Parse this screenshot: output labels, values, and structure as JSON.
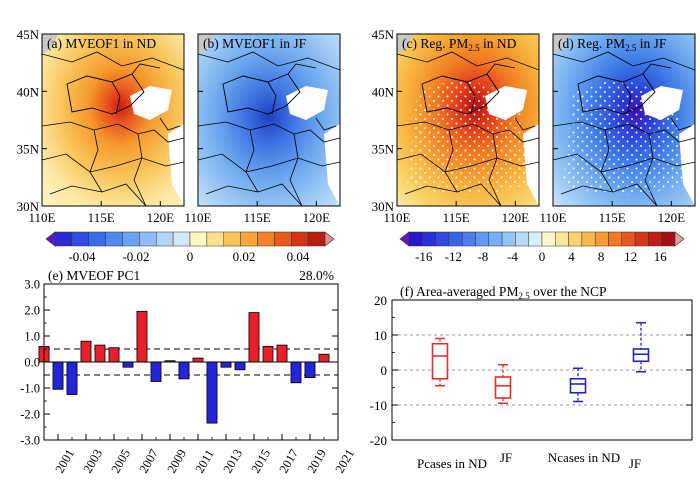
{
  "chart_data": [
    {
      "type": "heatmap",
      "panel": "a",
      "title": "(a) MVEOF1 in ND",
      "xticks": [
        "110E",
        "115E",
        "120E"
      ],
      "yticks": [
        "30N",
        "35N",
        "40N",
        "45N"
      ],
      "xlim": [
        110,
        122
      ],
      "ylim": [
        30,
        45
      ],
      "field": "positive",
      "peak_value": 0.045,
      "peak_lon": 115.5,
      "peak_lat": 38.5,
      "stippled": false
    },
    {
      "type": "heatmap",
      "panel": "b",
      "title": "(b) MVEOF1 in JF",
      "xticks": [
        "110E",
        "115E",
        "120E"
      ],
      "yticks": [
        "30N",
        "35N",
        "40N",
        "45N"
      ],
      "xlim": [
        110,
        122
      ],
      "ylim": [
        30,
        45
      ],
      "field": "negative",
      "peak_value": -0.04,
      "peak_lon": 115.5,
      "peak_lat": 38,
      "stippled": false
    },
    {
      "type": "heatmap",
      "panel": "c",
      "title": "(c) Reg. PM",
      "title_sub": "2.5",
      "title_tail": " in ND",
      "xticks": [
        "110E",
        "115E",
        "120E"
      ],
      "yticks": [
        "30N",
        "35N",
        "40N",
        "45N"
      ],
      "xlim": [
        110,
        122
      ],
      "ylim": [
        30,
        45
      ],
      "field": "positive",
      "peak_value": 16,
      "peak_lon": 116,
      "peak_lat": 38.5,
      "stippled": true
    },
    {
      "type": "heatmap",
      "panel": "d",
      "title": "(d) Reg. PM",
      "title_sub": "2.5",
      "title_tail": " in JF",
      "xticks": [
        "110E",
        "115E",
        "120E"
      ],
      "yticks": [
        "30N",
        "35N",
        "40N",
        "45N"
      ],
      "xlim": [
        110,
        122
      ],
      "ylim": [
        30,
        45
      ],
      "field": "negative",
      "peak_value": -16,
      "peak_lon": 116.5,
      "peak_lat": 38,
      "stippled": true
    },
    {
      "type": "colorbar",
      "ticks": [
        "-0.04",
        "-0.02",
        "0",
        "0.02",
        "0.04"
      ],
      "range": [
        -0.05,
        0.05
      ]
    },
    {
      "type": "colorbar",
      "ticks": [
        "-16",
        "-12",
        "-8",
        "-4",
        "0",
        "4",
        "8",
        "12",
        "16"
      ],
      "range": [
        -18,
        18
      ]
    },
    {
      "type": "bar",
      "title": "(e) MVEOF PC1",
      "variance_label": "28.0%",
      "x": [
        2000,
        2001,
        2002,
        2003,
        2004,
        2005,
        2006,
        2007,
        2008,
        2009,
        2010,
        2011,
        2012,
        2013,
        2014,
        2015,
        2016,
        2017,
        2018,
        2019,
        2020
      ],
      "values": [
        0.6,
        -1.05,
        -1.25,
        0.8,
        0.65,
        0.55,
        -0.2,
        1.95,
        -0.75,
        0.05,
        -0.65,
        0.15,
        -2.35,
        -0.2,
        -0.3,
        1.9,
        0.6,
        0.65,
        -0.8,
        -0.6,
        0.3
      ],
      "xticklabels": [
        "2001",
        "2003",
        "2005",
        "2007",
        "2009",
        "2011",
        "2013",
        "2015",
        "2017",
        "2019",
        "2021"
      ],
      "yticklabels": [
        "3.0",
        "2.0",
        "1.0",
        "0.0",
        "-1.0",
        "-2.0",
        "-3.0"
      ],
      "ylim": [
        -3,
        3
      ],
      "reference_lines": [
        0.5,
        -0.5
      ],
      "positive_color": "#e8202a",
      "negative_color": "#2424d8"
    },
    {
      "type": "box",
      "title": "(f) Area-averaged PM",
      "title_sub": "2.5",
      "title_tail": " over the NCP",
      "ylim": [
        -20,
        20
      ],
      "yticklabels": [
        "20",
        "10",
        "0",
        "-10",
        "-20"
      ],
      "gridlines": [
        10,
        0,
        -10
      ],
      "labels": [
        "Pcases in ND",
        "JF",
        "Ncases in ND",
        "JF"
      ],
      "boxes": [
        {
          "name": "Pcases in ND",
          "color": "#e03030",
          "min": -4.5,
          "q1": -2.5,
          "median": 4,
          "q3": 7.5,
          "max": 9
        },
        {
          "name": "Pcases JF",
          "color": "#e03030",
          "min": -9.5,
          "q1": -8,
          "median": -4.5,
          "q3": -2,
          "max": 1.5
        },
        {
          "name": "Ncases in ND",
          "color": "#2424cc",
          "min": -9,
          "q1": -6.5,
          "median": -4,
          "q3": -2.5,
          "max": 0.5
        },
        {
          "name": "Ncases JF",
          "color": "#2424cc",
          "min": -0.5,
          "q1": 2.5,
          "median": 4.5,
          "q3": 6,
          "max": 13.5
        }
      ]
    }
  ]
}
